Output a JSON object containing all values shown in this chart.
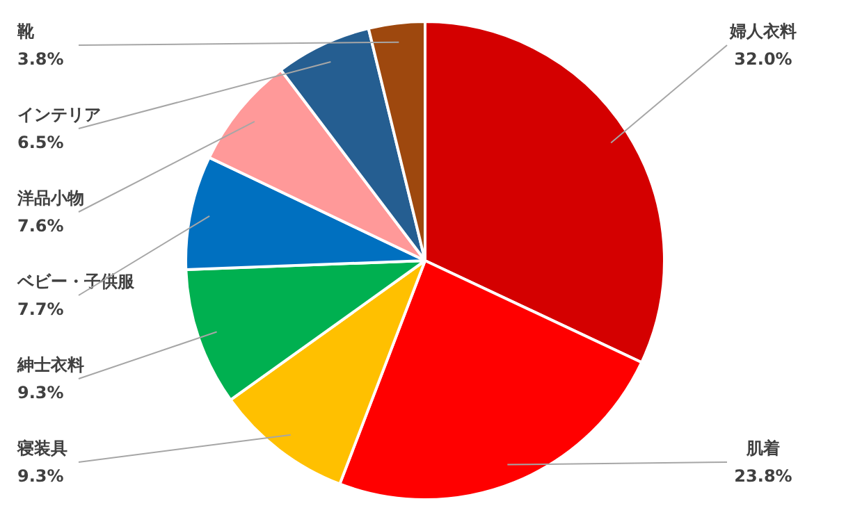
{
  "chart_data": {
    "type": "pie",
    "categories": [
      "婦人衣料",
      "肌着",
      "寝装具",
      "紳士衣料",
      "ベビー・子供服",
      "洋品小物",
      "インテリア",
      "靴"
    ],
    "values": [
      32.0,
      23.8,
      9.3,
      9.3,
      7.7,
      7.6,
      6.5,
      3.8
    ],
    "colors": [
      "#d40000",
      "#ff0000",
      "#ffc000",
      "#00b050",
      "#0070c0",
      "#ff9999",
      "#255e91",
      "#9e480e"
    ],
    "value_labels": [
      "32.0%",
      "23.8%",
      "9.3%",
      "9.3%",
      "7.7%",
      "7.6%",
      "6.5%",
      "3.8%"
    ],
    "legend": false
  }
}
